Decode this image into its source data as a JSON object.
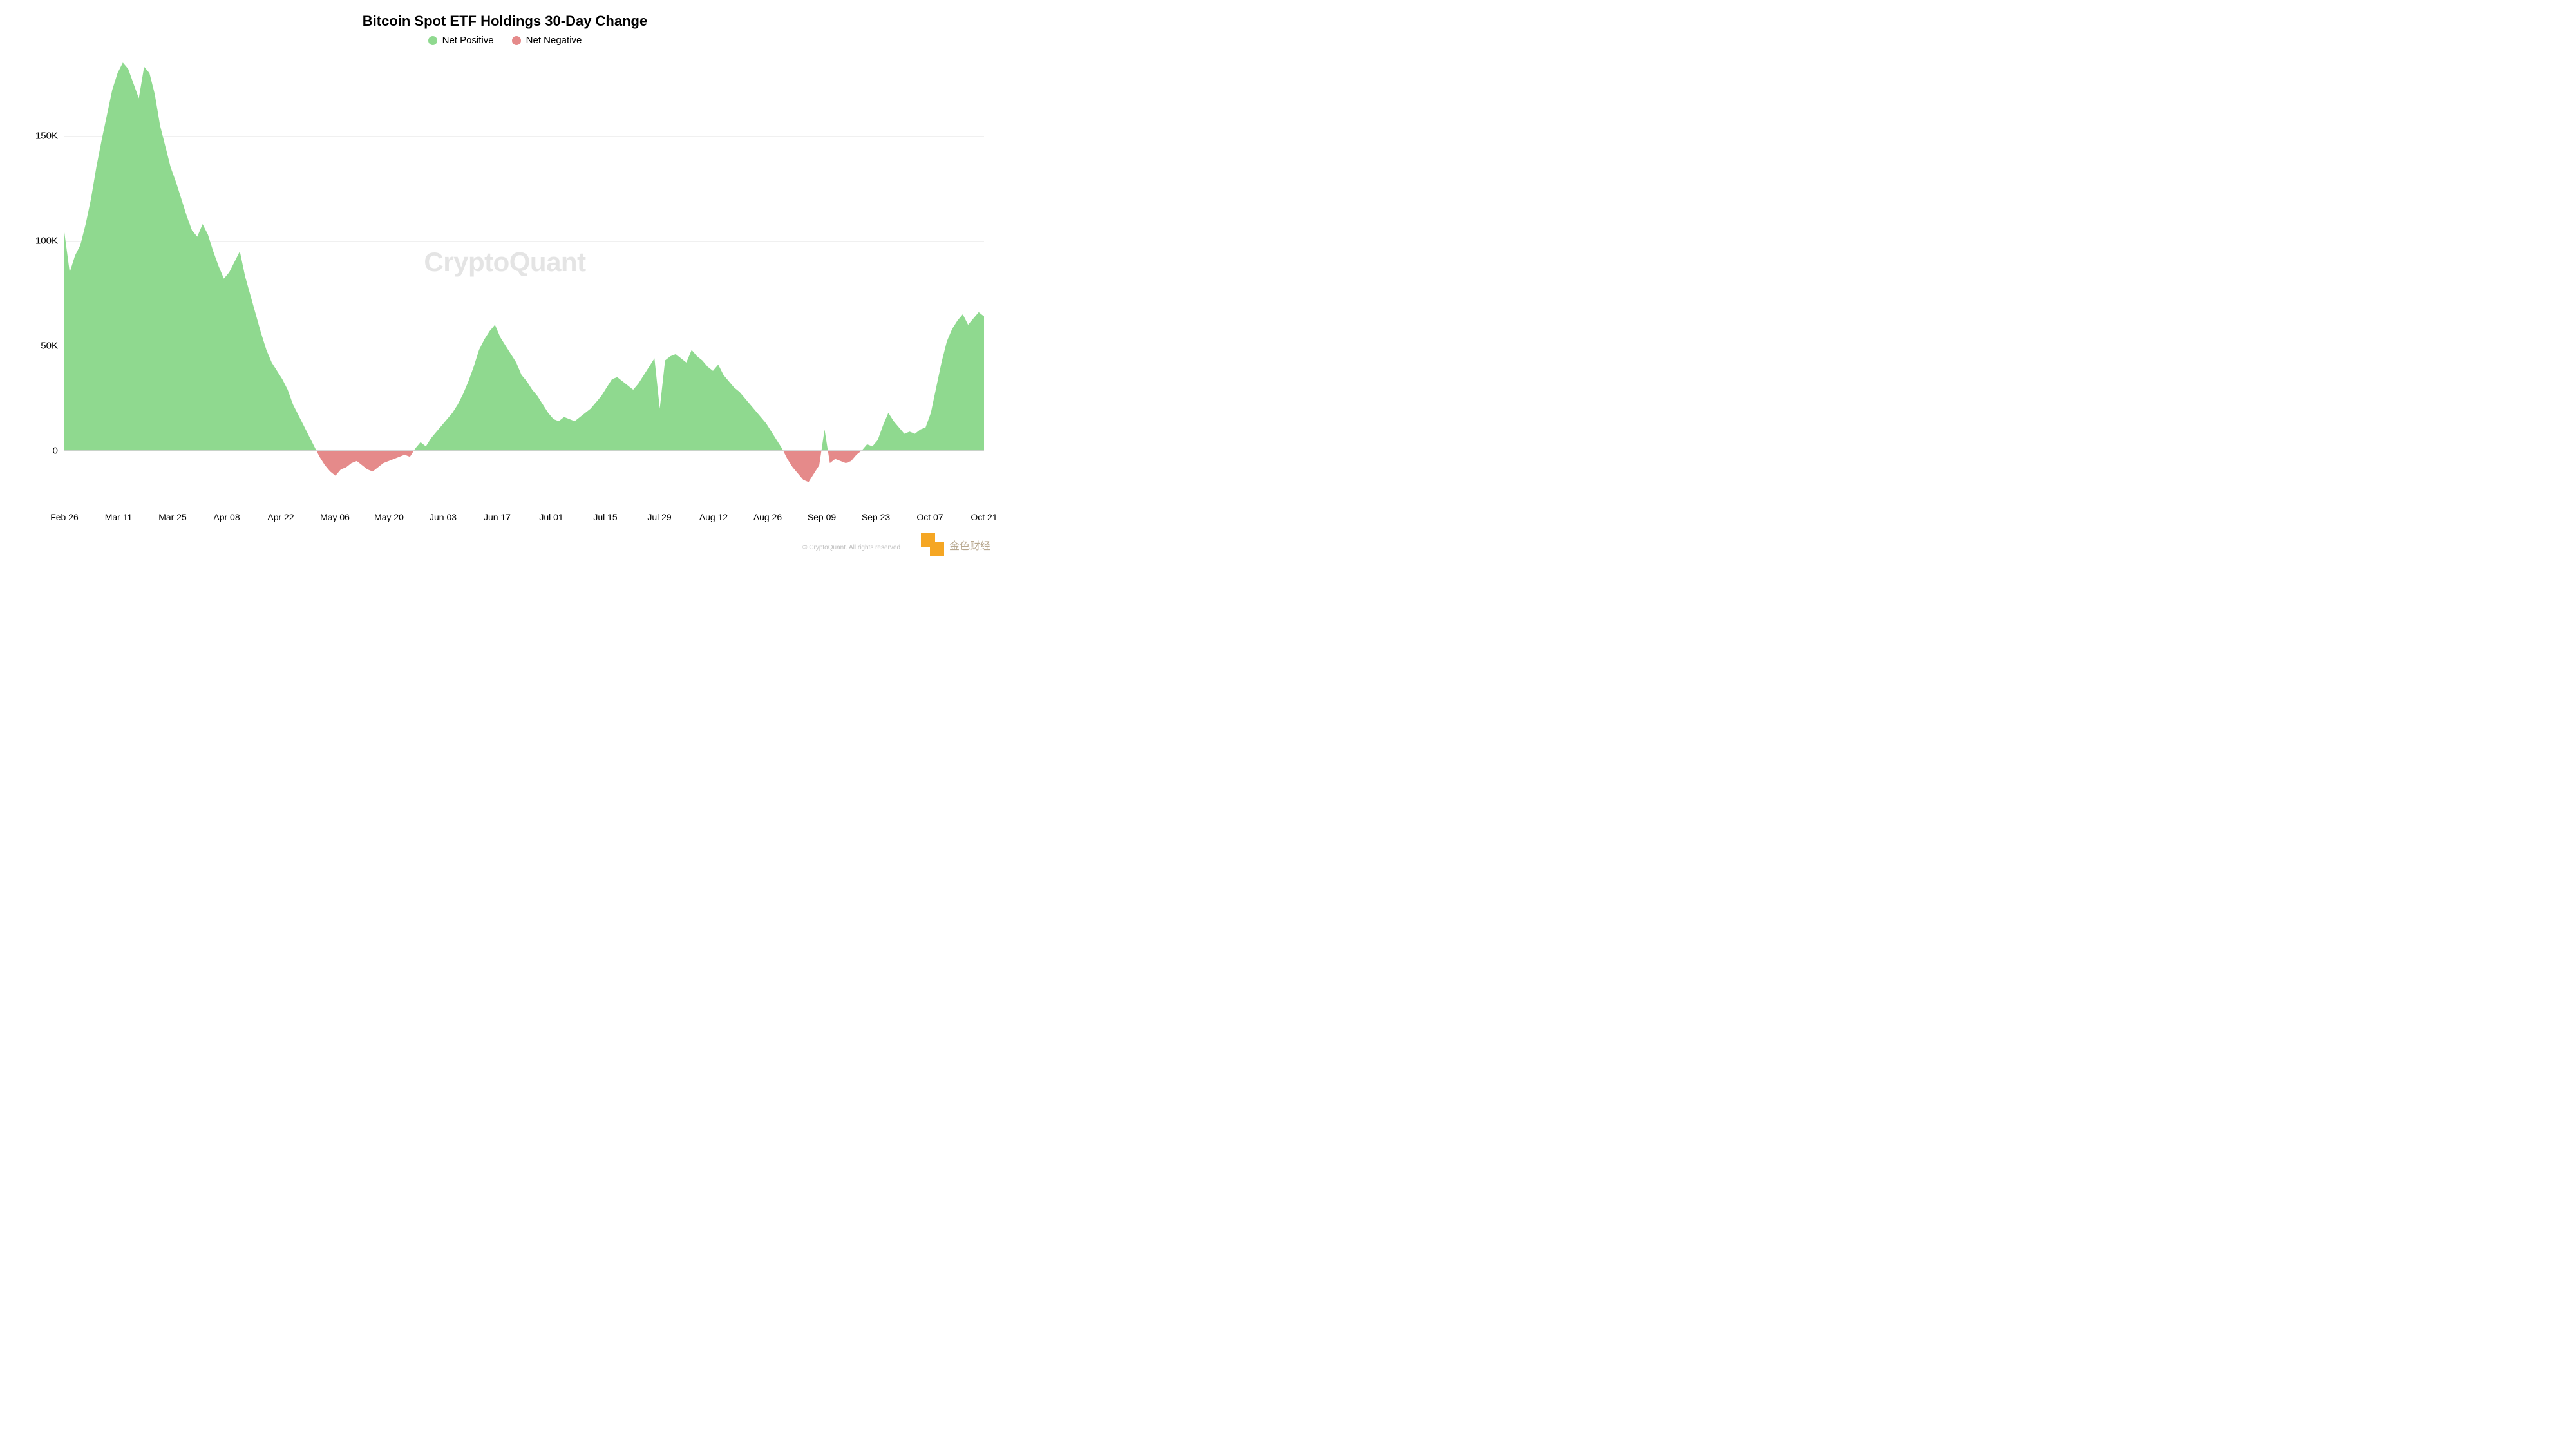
{
  "chart": {
    "type": "area",
    "title": "Bitcoin Spot ETF Holdings 30-Day Change",
    "title_fontsize": 22,
    "title_color": "#000000",
    "background_color": "#ffffff",
    "watermark": "CryptoQuant",
    "watermark_color": "#e4e4e4",
    "watermark_fontsize": 42,
    "legend": {
      "items": [
        {
          "label": "Net Positive",
          "color": "#8fd98f"
        },
        {
          "label": "Net Negative",
          "color": "#e58a8a"
        }
      ],
      "fontsize": 15
    },
    "colors": {
      "positive_fill": "#8fd98f",
      "negative_fill": "#e58a8a",
      "grid": "#f0f0f0",
      "axis_text": "#000000"
    },
    "y_axis": {
      "min": -25000,
      "max": 190000,
      "ticks": [
        0,
        50000,
        100000,
        150000
      ],
      "tick_labels": [
        "0",
        "50K",
        "100K",
        "150K"
      ],
      "fontsize": 15
    },
    "x_axis": {
      "labels": [
        "Feb 26",
        "Mar 11",
        "Mar 25",
        "Apr 08",
        "Apr 22",
        "May 06",
        "May 20",
        "Jun 03",
        "Jun 17",
        "Jul 01",
        "Jul 15",
        "Jul 29",
        "Aug 12",
        "Aug 26",
        "Sep 09",
        "Sep 23",
        "Oct 07",
        "Oct 21"
      ],
      "fontsize": 14
    },
    "series": {
      "values": [
        104000,
        85000,
        93000,
        98000,
        108000,
        120000,
        135000,
        148000,
        160000,
        172000,
        180000,
        185000,
        182000,
        175000,
        168000,
        183000,
        180000,
        170000,
        155000,
        145000,
        135000,
        128000,
        120000,
        112000,
        105000,
        102000,
        108000,
        103000,
        95000,
        88000,
        82000,
        85000,
        90000,
        95000,
        83000,
        74000,
        65000,
        56000,
        48000,
        42000,
        38000,
        34000,
        29000,
        22000,
        17000,
        12000,
        7000,
        2000,
        -3000,
        -7000,
        -10000,
        -12000,
        -9000,
        -8000,
        -6000,
        -5000,
        -7000,
        -9000,
        -10000,
        -8000,
        -6000,
        -5000,
        -4000,
        -3000,
        -2000,
        -3000,
        1000,
        4000,
        2000,
        6000,
        9000,
        12000,
        15000,
        18000,
        22000,
        27000,
        33000,
        40000,
        48000,
        53000,
        57000,
        60000,
        54000,
        50000,
        46000,
        42000,
        36000,
        33000,
        29000,
        26000,
        22000,
        18000,
        15000,
        14000,
        16000,
        15000,
        14000,
        16000,
        18000,
        20000,
        23000,
        26000,
        30000,
        34000,
        35000,
        33000,
        31000,
        29000,
        32000,
        36000,
        40000,
        44000,
        20000,
        43000,
        45000,
        46000,
        44000,
        42000,
        48000,
        45000,
        43000,
        40000,
        38000,
        41000,
        36000,
        33000,
        30000,
        28000,
        25000,
        22000,
        19000,
        16000,
        13000,
        9000,
        5000,
        1000,
        -4000,
        -8000,
        -11000,
        -14000,
        -15000,
        -11000,
        -7000,
        10000,
        -6000,
        -4000,
        -5000,
        -6000,
        -5000,
        -2000,
        0,
        3000,
        2000,
        5000,
        12000,
        18000,
        14000,
        11000,
        8000,
        9000,
        8000,
        10000,
        11000,
        18000,
        30000,
        42000,
        52000,
        58000,
        62000,
        65000,
        60000,
        63000,
        66000,
        64000
      ]
    },
    "footer": {
      "logo_text": "金色财经",
      "logo_color": "#f5a623",
      "copyright": "© CryptoQuant. All rights reserved"
    }
  }
}
